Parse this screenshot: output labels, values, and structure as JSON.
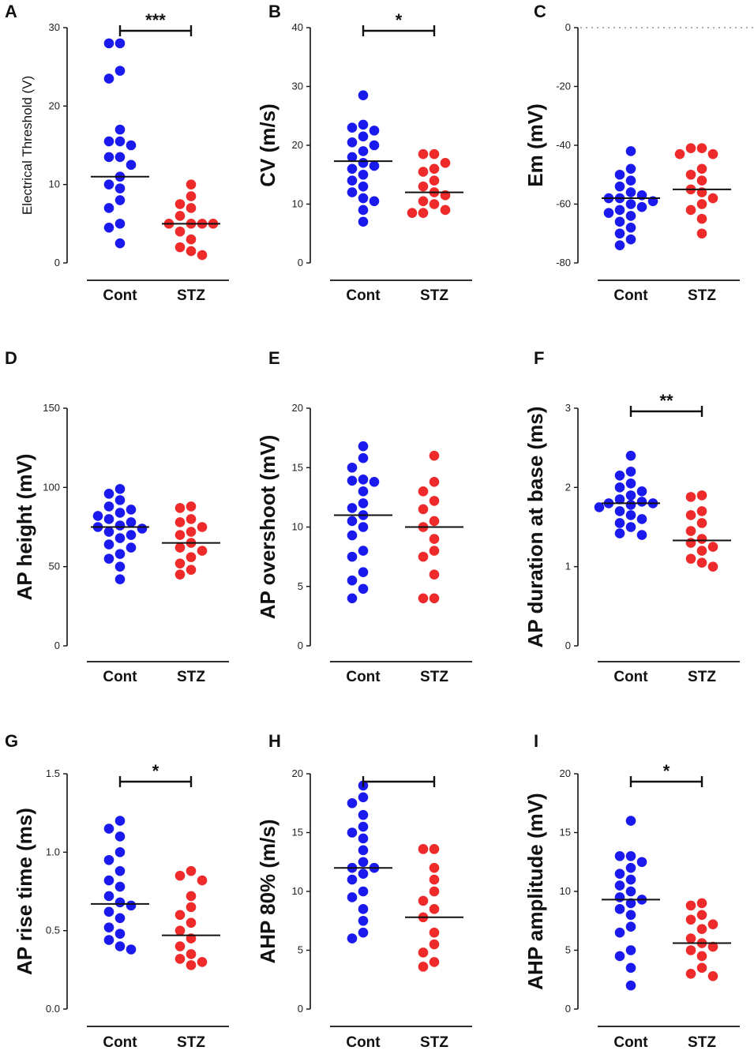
{
  "chart_data": [
    {
      "type": "scatter",
      "panel": "A",
      "ylabel": "Electrical Threshold (V)",
      "ylabel_style": "small",
      "ylim": [
        0,
        30
      ],
      "yticks": [
        0,
        10,
        20,
        30
      ],
      "categories": [
        "Cont",
        "STZ"
      ],
      "series": [
        {
          "name": "Cont",
          "color": "#1a1aee",
          "median": 11,
          "values": [
            28,
            28,
            24.5,
            23.5,
            17,
            15.5,
            15.5,
            15,
            13.5,
            13.5,
            12.5,
            11,
            10,
            9.5,
            8,
            7,
            5,
            4.5,
            2.5
          ]
        },
        {
          "name": "STZ",
          "color": "#ee2a2a",
          "median": 5,
          "values": [
            10,
            8.5,
            7.5,
            7,
            6,
            5,
            5,
            5,
            5,
            4,
            3,
            2,
            1.5,
            1
          ]
        }
      ],
      "significance": "***"
    },
    {
      "type": "scatter",
      "panel": "B",
      "ylabel": "CV (m/s)",
      "ylim": [
        0,
        40
      ],
      "yticks": [
        0,
        10,
        20,
        30,
        40
      ],
      "categories": [
        "Cont",
        "STZ"
      ],
      "series": [
        {
          "name": "Cont",
          "color": "#1a1aee",
          "median": 17.3,
          "values": [
            28.5,
            23.5,
            23,
            22.5,
            21.5,
            20.5,
            20,
            19,
            18,
            17,
            16.5,
            16,
            15,
            14,
            13,
            12,
            11,
            10.5,
            9,
            7
          ]
        },
        {
          "name": "STZ",
          "color": "#ee2a2a",
          "median": 12,
          "values": [
            18.5,
            18.5,
            17,
            16,
            15.5,
            14,
            13,
            12,
            11.5,
            10.5,
            10,
            9,
            8.5,
            8.5
          ]
        }
      ],
      "significance": "*"
    },
    {
      "type": "scatter",
      "panel": "C",
      "ylabel": "Em (mV)",
      "ylim": [
        -80,
        0
      ],
      "yticks": [
        0,
        -20,
        -40,
        -60,
        -80
      ],
      "categories": [
        "Cont",
        "STZ"
      ],
      "reference_line": 0,
      "series": [
        {
          "name": "Cont",
          "color": "#1a1aee",
          "median": -58,
          "values": [
            -42,
            -48,
            -50,
            -52,
            -54,
            -56,
            -57,
            -58,
            -58,
            -59,
            -60,
            -61,
            -62,
            -63,
            -64,
            -66,
            -68,
            -70,
            -72,
            -74
          ]
        },
        {
          "name": "STZ",
          "color": "#ee2a2a",
          "median": -55,
          "values": [
            -41,
            -41,
            -43,
            -43,
            -48,
            -50,
            -52,
            -55,
            -56,
            -58,
            -60,
            -62,
            -65,
            -70
          ]
        }
      ],
      "significance": ""
    },
    {
      "type": "scatter",
      "panel": "D",
      "ylabel": "AP height  (mV)",
      "ylim": [
        0,
        150
      ],
      "yticks": [
        0,
        50,
        100,
        150
      ],
      "categories": [
        "Cont",
        "STZ"
      ],
      "series": [
        {
          "name": "Cont",
          "color": "#1a1aee",
          "median": 75,
          "values": [
            99,
            96,
            92,
            88,
            86,
            84,
            82,
            80,
            78,
            76,
            75,
            74,
            72,
            70,
            68,
            64,
            62,
            58,
            55,
            50,
            42
          ]
        },
        {
          "name": "STZ",
          "color": "#ee2a2a",
          "median": 65,
          "values": [
            88,
            87,
            80,
            78,
            75,
            72,
            70,
            65,
            62,
            60,
            56,
            52,
            48,
            45
          ]
        }
      ],
      "significance": ""
    },
    {
      "type": "scatter",
      "panel": "E",
      "ylabel": "AP overshoot  (mV)",
      "ylim": [
        0,
        20
      ],
      "yticks": [
        0,
        5,
        10,
        15,
        20
      ],
      "categories": [
        "Cont",
        "STZ"
      ],
      "series": [
        {
          "name": "Cont",
          "color": "#1a1aee",
          "median": 11,
          "values": [
            16.8,
            15.8,
            15,
            14,
            13.9,
            13.8,
            13,
            12,
            11.6,
            11,
            10.5,
            10,
            9.3,
            8,
            7.5,
            6.2,
            5.5,
            4.8,
            4
          ]
        },
        {
          "name": "STZ",
          "color": "#ee2a2a",
          "median": 10,
          "values": [
            16,
            13.8,
            13,
            12.2,
            11.5,
            10.5,
            10,
            9,
            8,
            7.5,
            6,
            4,
            4
          ]
        }
      ],
      "significance": ""
    },
    {
      "type": "scatter",
      "panel": "F",
      "ylabel": "AP duration at base (ms)",
      "ylim": [
        0,
        3
      ],
      "yticks": [
        0,
        1,
        2,
        3
      ],
      "categories": [
        "Cont",
        "STZ"
      ],
      "series": [
        {
          "name": "Cont",
          "color": "#1a1aee",
          "median": 1.8,
          "values": [
            2.4,
            2.2,
            2.15,
            2.05,
            2.0,
            1.95,
            1.9,
            1.85,
            1.82,
            1.8,
            1.8,
            1.78,
            1.75,
            1.7,
            1.65,
            1.6,
            1.55,
            1.5,
            1.42,
            1.4
          ]
        },
        {
          "name": "STZ",
          "color": "#ee2a2a",
          "median": 1.33,
          "values": [
            1.9,
            1.88,
            1.7,
            1.65,
            1.55,
            1.45,
            1.35,
            1.3,
            1.25,
            1.2,
            1.1,
            1.05,
            1.0
          ]
        }
      ],
      "significance": "**"
    },
    {
      "type": "scatter",
      "panel": "G",
      "ylabel": "AP rise time  (ms)",
      "ylim": [
        0,
        1.5
      ],
      "yticks": [
        "0.0",
        "0.5",
        "1.0",
        "1.5"
      ],
      "categories": [
        "Cont",
        "STZ"
      ],
      "series": [
        {
          "name": "Cont",
          "color": "#1a1aee",
          "median": 0.67,
          "values": [
            1.2,
            1.15,
            1.1,
            1.0,
            0.95,
            0.88,
            0.82,
            0.78,
            0.72,
            0.68,
            0.66,
            0.62,
            0.58,
            0.52,
            0.48,
            0.44,
            0.4,
            0.38
          ]
        },
        {
          "name": "STZ",
          "color": "#ee2a2a",
          "median": 0.47,
          "values": [
            0.88,
            0.85,
            0.82,
            0.72,
            0.65,
            0.6,
            0.55,
            0.5,
            0.45,
            0.4,
            0.35,
            0.32,
            0.3,
            0.28
          ]
        }
      ],
      "significance": "*"
    },
    {
      "type": "scatter",
      "panel": "H",
      "ylabel": "AHP 80%  (m/s)",
      "ylim": [
        0,
        20
      ],
      "yticks": [
        0,
        5,
        10,
        15,
        20
      ],
      "categories": [
        "Cont",
        "STZ"
      ],
      "series": [
        {
          "name": "Cont",
          "color": "#1a1aee",
          "median": 12,
          "values": [
            19,
            18,
            17.5,
            16.5,
            15.5,
            15,
            14.5,
            13.5,
            12.5,
            12,
            12,
            11.5,
            11,
            10,
            9.5,
            8.5,
            7.5,
            6.5,
            6
          ]
        },
        {
          "name": "STZ",
          "color": "#ee2a2a",
          "median": 7.8,
          "values": [
            13.6,
            13.6,
            12,
            11,
            10,
            9.2,
            8.5,
            7.8,
            6.5,
            5.5,
            4.8,
            4,
            3.6
          ]
        }
      ],
      "significance": ""
    },
    {
      "type": "scatter",
      "panel": "I",
      "ylabel": "AHP amplitude (mV)",
      "ylim": [
        0,
        20
      ],
      "yticks": [
        0,
        5,
        10,
        15,
        20
      ],
      "categories": [
        "Cont",
        "STZ"
      ],
      "series": [
        {
          "name": "Cont",
          "color": "#1a1aee",
          "median": 9.3,
          "values": [
            16,
            13,
            13,
            12.5,
            12,
            11.5,
            11,
            10.5,
            10,
            9.5,
            9.3,
            9,
            8.5,
            8,
            7,
            6.5,
            5,
            4.5,
            3.5,
            2
          ]
        },
        {
          "name": "STZ",
          "color": "#ee2a2a",
          "median": 5.6,
          "values": [
            9,
            8.8,
            8,
            7.6,
            7.2,
            6.8,
            6,
            5.6,
            5.3,
            5,
            4.5,
            3.5,
            3,
            2.8
          ]
        }
      ],
      "significance": "*"
    }
  ]
}
